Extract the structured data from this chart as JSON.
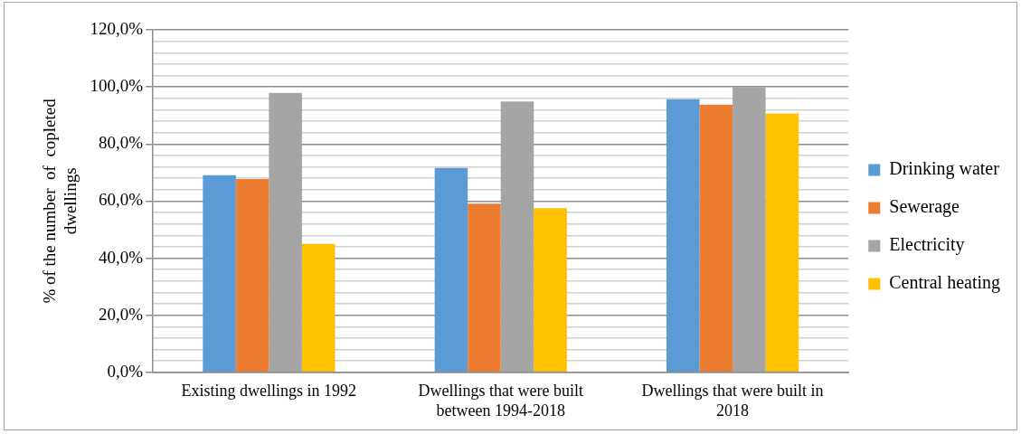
{
  "chart_data": {
    "type": "bar",
    "ylabel": "% of the number  of  copleted dwellings",
    "categories": [
      "Existing dwellings in 1992",
      "Dwellings that were built between 1994-2018",
      "Dwellings that were built in 2018"
    ],
    "series": [
      {
        "name": "Drinking water",
        "color": "#5b9bd5",
        "values": [
          69.1,
          71.6,
          95.7
        ]
      },
      {
        "name": "Sewerage",
        "color": "#ed7d31",
        "values": [
          67.7,
          59.1,
          93.8
        ]
      },
      {
        "name": "Electricity",
        "color": "#a5a5a5",
        "values": [
          97.9,
          94.9,
          100
        ]
      },
      {
        "name": "Central heating",
        "color": "#ffc000",
        "values": [
          45.0,
          57.5,
          90.7
        ]
      }
    ],
    "ylim": [
      0,
      120
    ],
    "yticks": [
      {
        "value": 0,
        "label": "0,0%"
      },
      {
        "value": 4,
        "label": null
      },
      {
        "value": 8,
        "label": null
      },
      {
        "value": 12,
        "label": null
      },
      {
        "value": 16,
        "label": null
      },
      {
        "value": 20,
        "label": "20,0%"
      },
      {
        "value": 24,
        "label": null
      },
      {
        "value": 28,
        "label": null
      },
      {
        "value": 32,
        "label": null
      },
      {
        "value": 36,
        "label": null
      },
      {
        "value": 40,
        "label": "40,0%"
      },
      {
        "value": 44,
        "label": null
      },
      {
        "value": 48,
        "label": null
      },
      {
        "value": 52,
        "label": null
      },
      {
        "value": 56,
        "label": null
      },
      {
        "value": 60,
        "label": "60,0%"
      },
      {
        "value": 64,
        "label": null
      },
      {
        "value": 68,
        "label": null
      },
      {
        "value": 72,
        "label": null
      },
      {
        "value": 76,
        "label": null
      },
      {
        "value": 80,
        "label": "80,0%"
      },
      {
        "value": 84,
        "label": null
      },
      {
        "value": 88,
        "label": null
      },
      {
        "value": 92,
        "label": null
      },
      {
        "value": 96,
        "label": null
      },
      {
        "value": 100,
        "label": "100,0%"
      },
      {
        "value": 104,
        "label": null
      },
      {
        "value": 108,
        "label": null
      },
      {
        "value": 112,
        "label": null
      },
      {
        "value": 116,
        "label": null
      },
      {
        "value": 120,
        "label": "120,0%"
      }
    ],
    "grid": "y",
    "legend": "right"
  }
}
